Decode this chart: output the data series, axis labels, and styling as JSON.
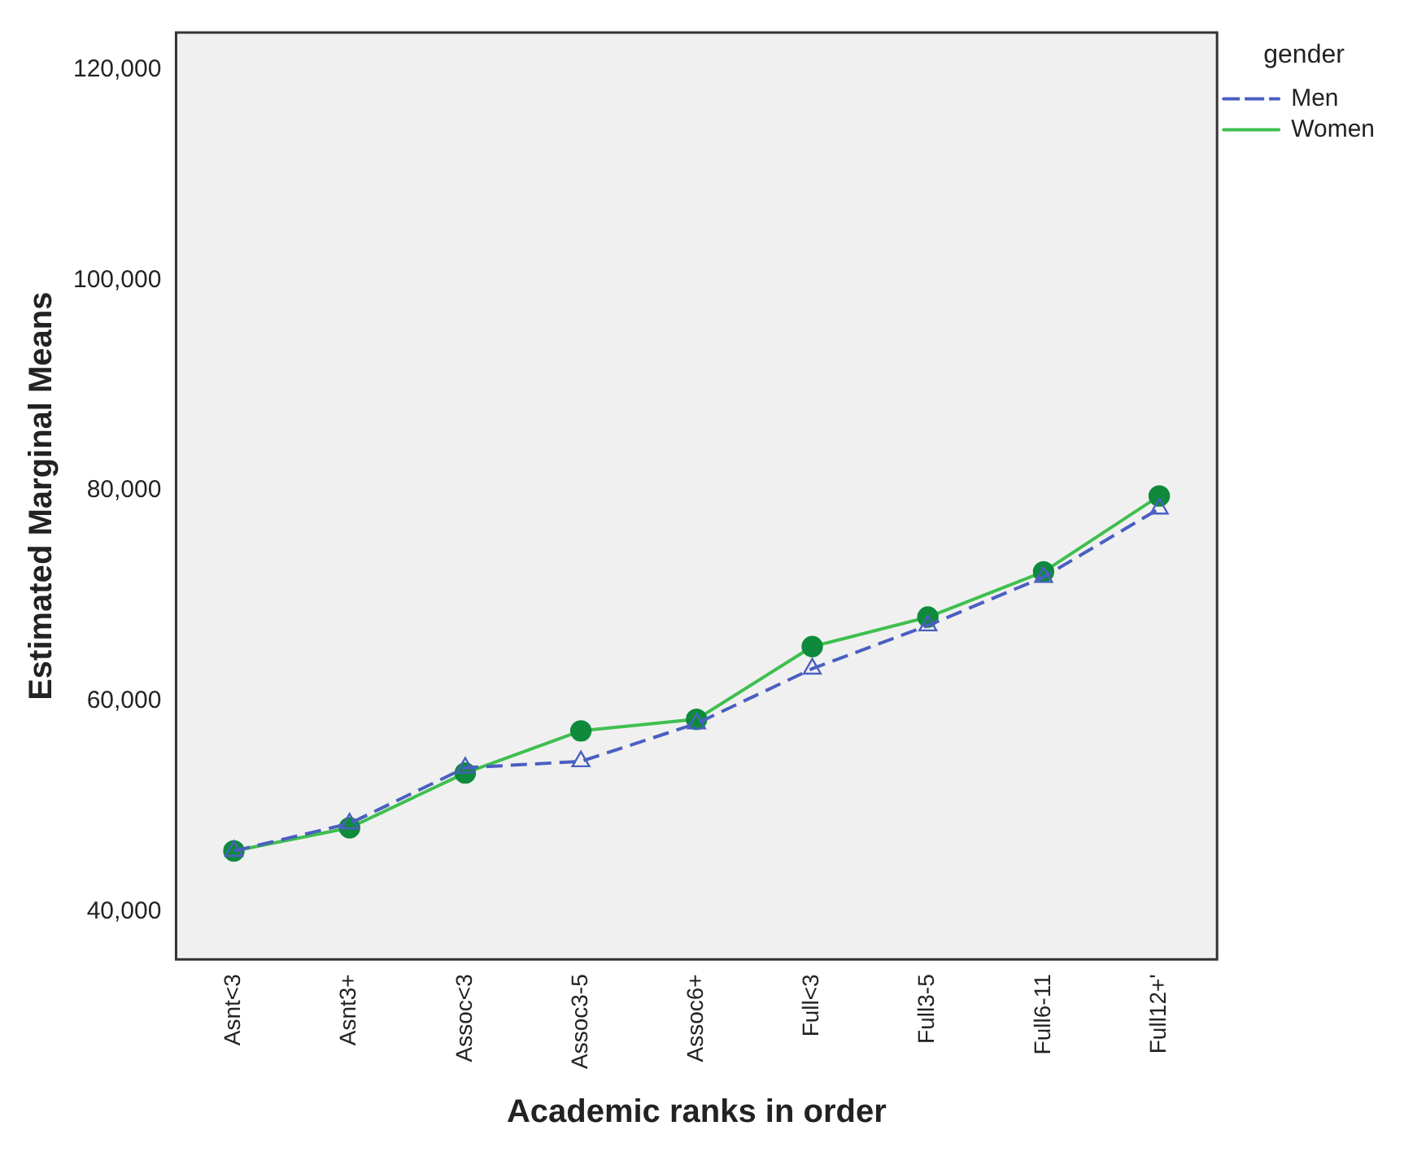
{
  "chart_data": {
    "type": "line",
    "xlabel": "Academic ranks in order",
    "ylabel": "Estimated Marginal Means",
    "legend_title": "gender",
    "categories": [
      "Asnt<3",
      "Asnt3+",
      "Assoc<3",
      "Assoc3-5",
      "Assoc6+",
      "Full<3",
      "Full3-5",
      "Full6-11",
      "Full12+'"
    ],
    "series": [
      {
        "name": "Men",
        "color": "#4a5fc1",
        "marker": "triangle",
        "line_style": "dashed",
        "values": [
          45800,
          48400,
          53700,
          54300,
          57900,
          63100,
          67200,
          71800,
          78300
        ]
      },
      {
        "name": "Women",
        "color": "#3fbf4f",
        "marker": "circle",
        "line_style": "solid",
        "values": [
          45800,
          48000,
          53200,
          57200,
          58300,
          65200,
          68000,
          72300,
          79500
        ]
      }
    ],
    "ylim": [
      35500,
      123500
    ],
    "yticks": [
      {
        "value": 40000,
        "label": "40,000"
      },
      {
        "value": 60000,
        "label": "60,000"
      },
      {
        "value": 80000,
        "label": "80,000"
      },
      {
        "value": 100000,
        "label": "100,000"
      },
      {
        "value": 120000,
        "label": "120,000"
      }
    ],
    "grid": false,
    "legend": "top right"
  }
}
